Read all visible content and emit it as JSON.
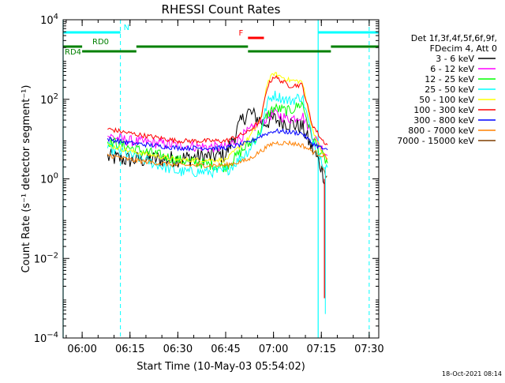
{
  "chart_data": {
    "type": "line",
    "title": "RHESSI Count Rates",
    "xlabel": "Start Time (10-May-03 05:54:02)",
    "ylabel": "Count Rate (s⁻¹ detector segment⁻¹)",
    "yscale": "log",
    "xlim": [
      "05:54:02",
      "07:33:00"
    ],
    "ylim": [
      0.0001,
      10000
    ],
    "x_ticks": [
      "06:00",
      "06:15",
      "06:30",
      "06:45",
      "07:00",
      "07:15",
      "07:30"
    ],
    "y_ticks": [
      {
        "value": 0.0001,
        "base": "10",
        "exp": "−4"
      },
      {
        "value": 0.01,
        "base": "10",
        "exp": "−2"
      },
      {
        "value": 1,
        "base": "10",
        "exp": "0"
      },
      {
        "value": 100,
        "base": "10",
        "exp": "2"
      },
      {
        "value": 10000,
        "base": "10",
        "exp": "4"
      }
    ],
    "legend": {
      "placement": "right",
      "header": [
        "Det 1f,3f,4f,5f,6f,9f,",
        "FDecim 4, Att 0"
      ]
    },
    "series": [
      {
        "name": "3 - 6 keV",
        "color": "#000000",
        "x": [
          "06:08",
          "06:15",
          "06:30",
          "06:45",
          "06:49",
          "06:52",
          "06:57",
          "07:00",
          "07:05",
          "07:09",
          "07:12",
          "07:15",
          "07:16"
        ],
        "y": [
          3.5,
          3.0,
          3.2,
          4.0,
          20,
          50,
          25,
          32,
          25,
          20,
          6,
          2,
          1.0
        ]
      },
      {
        "name": "6 - 12 keV",
        "color": "#ff00ff",
        "x": [
          "06:08",
          "06:15",
          "06:30",
          "06:45",
          "06:48",
          "06:52",
          "06:57",
          "07:00",
          "07:05",
          "07:09",
          "07:12",
          "07:15",
          "07:17"
        ],
        "y": [
          12,
          9,
          7,
          6,
          9,
          15,
          30,
          45,
          32,
          40,
          14,
          6,
          4
        ]
      },
      {
        "name": "12 - 25 keV",
        "color": "#00ff00",
        "x": [
          "06:08",
          "06:15",
          "06:30",
          "06:45",
          "06:50",
          "06:55",
          "06:58",
          "07:00",
          "07:05",
          "07:09",
          "07:12",
          "07:15",
          "07:17"
        ],
        "y": [
          9,
          6,
          3,
          2,
          5,
          12,
          40,
          60,
          50,
          80,
          12,
          4,
          2.5
        ]
      },
      {
        "name": "25 - 50 keV",
        "color": "#00ffff",
        "x": [
          "06:08",
          "06:15",
          "06:30",
          "06:45",
          "06:52",
          "06:56",
          "06:58",
          "07:00",
          "07:05",
          "07:09",
          "07:12",
          "07:15",
          "07:17"
        ],
        "y": [
          6,
          4,
          1.5,
          1.5,
          5,
          15,
          80,
          130,
          90,
          120,
          12,
          3,
          2
        ]
      },
      {
        "name": "50 - 100 keV",
        "color": "#ffff00",
        "x": [
          "06:08",
          "06:15",
          "06:30",
          "06:45",
          "06:52",
          "06:56",
          "06:58",
          "07:00",
          "07:05",
          "07:09",
          "07:12",
          "07:15",
          "07:17"
        ],
        "y": [
          7,
          5,
          3,
          3,
          10,
          30,
          250,
          450,
          300,
          280,
          20,
          5,
          3
        ]
      },
      {
        "name": "100 - 300 keV",
        "color": "#ff0000",
        "x": [
          "06:08",
          "06:15",
          "06:30",
          "06:45",
          "06:52",
          "06:56",
          "06:58",
          "07:00",
          "07:05",
          "07:09",
          "07:12",
          "07:15",
          "07:17"
        ],
        "y": [
          18,
          14,
          9,
          9,
          15,
          30,
          200,
          380,
          220,
          230,
          25,
          10,
          7
        ]
      },
      {
        "name": "300 - 800 keV",
        "color": "#0000ff",
        "x": [
          "06:08",
          "06:15",
          "06:30",
          "06:45",
          "06:52",
          "06:56",
          "07:00",
          "07:05",
          "07:09",
          "07:12",
          "07:15",
          "07:17"
        ],
        "y": [
          10,
          8,
          6,
          6,
          8,
          12,
          16,
          15,
          14,
          8,
          6,
          5
        ]
      },
      {
        "name": "800 - 7000 keV",
        "color": "#ff8000",
        "x": [
          "06:08",
          "06:15",
          "06:30",
          "06:45",
          "06:52",
          "06:56",
          "07:00",
          "07:05",
          "07:09",
          "07:12",
          "07:15",
          "07:17"
        ],
        "y": [
          4,
          3,
          2.2,
          2.2,
          3,
          5,
          8,
          8,
          7,
          5,
          4,
          3.5
        ]
      },
      {
        "name": "7000 - 15000 keV",
        "color": "#7f3f00",
        "x": [
          "07:15",
          "07:17"
        ],
        "y": [
          2,
          1
        ]
      }
    ],
    "flags": [
      {
        "label": "N",
        "color": "#00ffff",
        "intervals": [
          [
            "05:54:02",
            "06:12"
          ],
          [
            "07:14",
            "07:33"
          ]
        ]
      },
      {
        "label": "F",
        "color": "#ff0000",
        "intervals": [
          [
            "06:52",
            "06:57"
          ]
        ]
      },
      {
        "label": "RD0",
        "color": "#008000",
        "intervals": [
          [
            "05:54:02",
            "06:00"
          ],
          [
            "06:17",
            "06:52"
          ],
          [
            "07:18",
            "07:33"
          ]
        ]
      },
      {
        "label": "RD4",
        "color": "#008000",
        "intervals": [
          [
            "06:00",
            "06:17"
          ],
          [
            "06:52",
            "07:18"
          ]
        ]
      }
    ],
    "vlines": {
      "dashed": [
        "06:12",
        "07:30"
      ],
      "solid": [
        "05:54:02",
        "07:14"
      ],
      "color": "#00ffff"
    },
    "spike": {
      "x": "07:16",
      "y": [
        0.001,
        1.0
      ],
      "color": "#ff0000"
    },
    "footnote": "18-Oct-2021 08:14"
  }
}
